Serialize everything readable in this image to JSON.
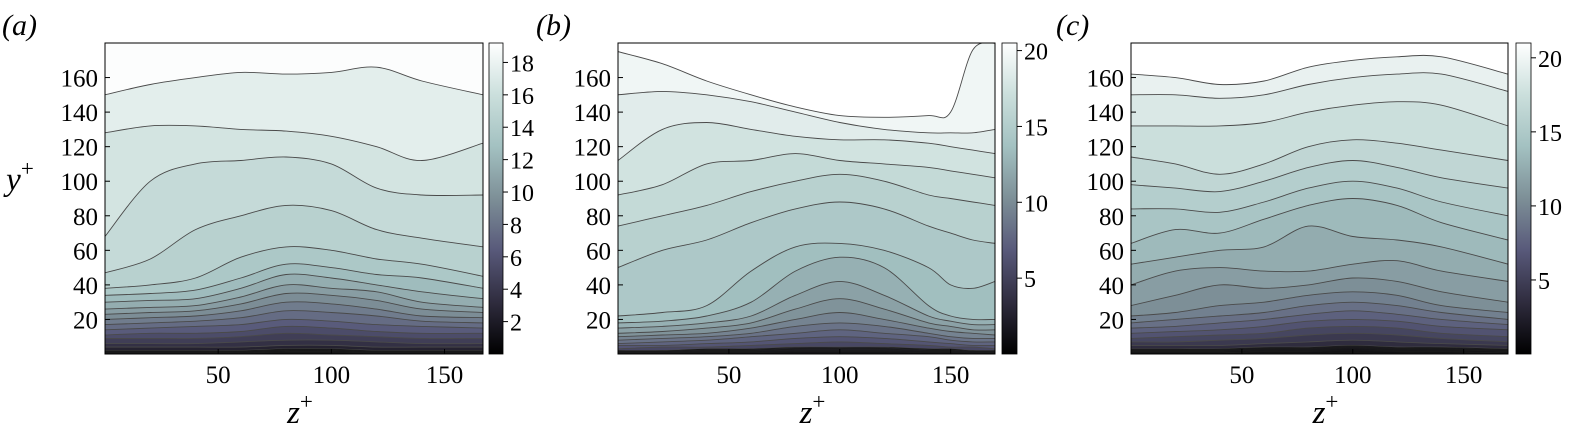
{
  "chart_data": [
    {
      "type": "contour",
      "panel_label": "(a)",
      "xlabel": "z+",
      "ylabel": "y+",
      "xlim": [
        0,
        167
      ],
      "ylim": [
        0,
        180
      ],
      "xticks": [
        50,
        100,
        150
      ],
      "yticks": [
        20,
        40,
        60,
        80,
        100,
        120,
        140,
        160
      ],
      "colorbar": {
        "min": 0,
        "max": 19.2,
        "ticks": [
          2,
          4,
          6,
          8,
          10,
          12,
          14,
          16,
          18
        ]
      },
      "colormap": [
        "#000000",
        "#2f2c3e",
        "#58597a",
        "#7d8f97",
        "#a3c1c1",
        "#cbdfdc",
        "#ffffff"
      ],
      "field": {
        "z": [
          0,
          20,
          40,
          60,
          80,
          100,
          120,
          140,
          167
        ],
        "levels": [
          {
            "value": 17.5,
            "y": [
              150,
              156,
              160,
              163,
              162,
              163,
              166,
              158,
              150
            ]
          },
          {
            "value": 16.5,
            "y": [
              128,
              132,
              132,
              130,
              129,
              126,
              120,
              112,
              122
            ]
          },
          {
            "value": 15.5,
            "y": [
              68,
              100,
              110,
              112,
              114,
              110,
              96,
              92,
              92
            ]
          },
          {
            "value": 14.5,
            "y": [
              47,
              55,
              72,
              80,
              86,
              83,
              72,
              67,
              62
            ]
          },
          {
            "value": 13.5,
            "y": [
              38,
              40,
              44,
              56,
              62,
              60,
              55,
              52,
              45
            ]
          },
          {
            "value": 12.5,
            "y": [
              34,
              35,
              37,
              44,
              52,
              50,
              46,
              44,
              38
            ]
          },
          {
            "value": 11.5,
            "y": [
              30,
              31,
              32,
              38,
              46,
              44,
              40,
              36,
              32
            ]
          },
          {
            "value": 10.5,
            "y": [
              26,
              27,
              28,
              33,
              40,
              38,
              36,
              30,
              27
            ]
          },
          {
            "value": 9.5,
            "y": [
              23,
              24,
              25,
              29,
              35,
              34,
              31,
              26,
              24
            ]
          },
          {
            "value": 8.5,
            "y": [
              20,
              21,
              22,
              25,
              30,
              29,
              26,
              22,
              21
            ]
          },
          {
            "value": 7.5,
            "y": [
              17,
              18,
              19,
              21,
              25,
              24,
              22,
              19,
              18
            ]
          },
          {
            "value": 6.5,
            "y": [
              14,
              15,
              16,
              17,
              20,
              19,
              17,
              16,
              15
            ]
          },
          {
            "value": 5.5,
            "y": [
              11,
              12,
              12,
              13,
              16,
              15,
              13,
              12,
              12
            ]
          },
          {
            "value": 4.5,
            "y": [
              9,
              9,
              9,
              10,
              12,
              11,
              10,
              9,
              9
            ]
          },
          {
            "value": 3.5,
            "y": [
              6,
              6,
              6,
              7,
              8,
              8,
              7,
              6,
              6
            ]
          },
          {
            "value": 2.5,
            "y": [
              4,
              4,
              4,
              4,
              5,
              5,
              4,
              4,
              4
            ]
          },
          {
            "value": 1.5,
            "y": [
              2,
              2,
              2,
              2,
              3,
              3,
              2,
              2,
              2
            ]
          }
        ]
      }
    },
    {
      "type": "contour",
      "panel_label": "(b)",
      "xlabel": "z+",
      "ylabel": "",
      "xlim": [
        0,
        170
      ],
      "ylim": [
        0,
        180
      ],
      "xticks": [
        50,
        100,
        150
      ],
      "yticks": [
        20,
        40,
        60,
        80,
        100,
        120,
        140,
        160
      ],
      "colorbar": {
        "min": 0,
        "max": 20.5,
        "ticks": [
          5,
          10,
          15,
          20
        ]
      },
      "colormap": [
        "#000000",
        "#2f2c3e",
        "#58597a",
        "#7d8f97",
        "#a3c1c1",
        "#cbdfdc",
        "#ffffff"
      ],
      "field": {
        "z": [
          0,
          20,
          40,
          60,
          80,
          100,
          120,
          140,
          150,
          160,
          170
        ],
        "levels": [
          {
            "value": 19.5,
            "y": [
              175,
              168,
              158,
              150,
              143,
              138,
              137,
              138,
              140,
              176,
              180
            ]
          },
          {
            "value": 18.5,
            "y": [
              150,
              152,
              150,
              146,
              140,
              134,
              130,
              128,
              128,
              128,
              130
            ]
          },
          {
            "value": 17.5,
            "y": [
              112,
              130,
              134,
              130,
              126,
              124,
              124,
              122,
              120,
              118,
              116
            ]
          },
          {
            "value": 16.5,
            "y": [
              92,
              98,
              110,
              112,
              116,
              112,
              110,
              108,
              106,
              104,
              102
            ]
          },
          {
            "value": 15.5,
            "y": [
              74,
              80,
              86,
              94,
              100,
              104,
              100,
              92,
              90,
              88,
              86
            ]
          },
          {
            "value": 14.5,
            "y": [
              50,
              60,
              66,
              76,
              84,
              88,
              84,
              74,
              70,
              66,
              64
            ]
          },
          {
            "value": 13.5,
            "y": [
              22,
              24,
              28,
              48,
              62,
              64,
              60,
              50,
              40,
              38,
              42
            ]
          },
          {
            "value": 12.5,
            "y": [
              18,
              19,
              22,
              30,
              48,
              56,
              50,
              28,
              22,
              20,
              20
            ]
          },
          {
            "value": 11.5,
            "y": [
              15,
              16,
              18,
              22,
              34,
              42,
              34,
              22,
              19,
              17,
              17
            ]
          },
          {
            "value": 10.5,
            "y": [
              12,
              13,
              15,
              18,
              26,
              32,
              26,
              18,
              16,
              14,
              14
            ]
          },
          {
            "value": 9.5,
            "y": [
              10,
              11,
              12,
              15,
              20,
              24,
              20,
              15,
              13,
              12,
              11
            ]
          },
          {
            "value": 8.5,
            "y": [
              8,
              9,
              10,
              12,
              16,
              18,
              16,
              12,
              10,
              9,
              9
            ]
          },
          {
            "value": 7.5,
            "y": [
              6,
              7,
              8,
              10,
              12,
              14,
              12,
              10,
              8,
              7,
              7
            ]
          },
          {
            "value": 6.5,
            "y": [
              5,
              5,
              6,
              7,
              9,
              10,
              9,
              7,
              6,
              5,
              5
            ]
          },
          {
            "value": 5.5,
            "y": [
              3,
              4,
              4,
              5,
              6,
              7,
              6,
              5,
              4,
              4,
              3
            ]
          },
          {
            "value": 4.5,
            "y": [
              2,
              2,
              3,
              3,
              4,
              4,
              4,
              3,
              3,
              2,
              2
            ]
          }
        ]
      }
    },
    {
      "type": "contour",
      "panel_label": "(c)",
      "xlabel": "z+",
      "ylabel": "",
      "xlim": [
        0,
        170
      ],
      "ylim": [
        0,
        180
      ],
      "xticks": [
        50,
        100,
        150
      ],
      "yticks": [
        20,
        40,
        60,
        80,
        100,
        120,
        140,
        160
      ],
      "colorbar": {
        "min": 0,
        "max": 21,
        "ticks": [
          5,
          10,
          15,
          20
        ]
      },
      "colormap": [
        "#000000",
        "#2f2c3e",
        "#58597a",
        "#7d8f97",
        "#a3c1c1",
        "#cbdfdc",
        "#ffffff"
      ],
      "field": {
        "z": [
          0,
          20,
          40,
          60,
          80,
          100,
          120,
          140,
          170
        ],
        "levels": [
          {
            "value": 19.5,
            "y": [
              162,
              160,
              156,
              158,
              166,
              170,
              172,
              172,
              162
            ]
          },
          {
            "value": 18.5,
            "y": [
              150,
              150,
              148,
              150,
              156,
              160,
              162,
              162,
              152
            ]
          },
          {
            "value": 17.5,
            "y": [
              132,
              132,
              132,
              134,
              140,
              144,
              146,
              144,
              132
            ]
          },
          {
            "value": 16.5,
            "y": [
              114,
              110,
              104,
              110,
              120,
              124,
              122,
              118,
              112
            ]
          },
          {
            "value": 15.5,
            "y": [
              98,
              96,
              94,
              100,
              108,
              112,
              108,
              102,
              96
            ]
          },
          {
            "value": 14.5,
            "y": [
              84,
              84,
              82,
              88,
              96,
              100,
              96,
              88,
              80
            ]
          },
          {
            "value": 13.5,
            "y": [
              64,
              72,
              70,
              78,
              86,
              90,
              86,
              76,
              66
            ]
          },
          {
            "value": 12.5,
            "y": [
              52,
              56,
              60,
              62,
              74,
              68,
              66,
              62,
              52
            ]
          },
          {
            "value": 11.5,
            "y": [
              40,
              48,
              50,
              48,
              48,
              52,
              54,
              48,
              42
            ]
          },
          {
            "value": 10.5,
            "y": [
              28,
              34,
              40,
              38,
              40,
              44,
              42,
              36,
              30
            ]
          },
          {
            "value": 9.5,
            "y": [
              22,
              24,
              28,
              30,
              34,
              36,
              34,
              28,
              24
            ]
          },
          {
            "value": 8.5,
            "y": [
              18,
              20,
              22,
              24,
              28,
              30,
              28,
              24,
              20
            ]
          },
          {
            "value": 7.5,
            "y": [
              15,
              16,
              18,
              20,
              23,
              25,
              23,
              20,
              17
            ]
          },
          {
            "value": 6.5,
            "y": [
              12,
              13,
              14,
              16,
              19,
              20,
              19,
              16,
              14
            ]
          },
          {
            "value": 5.5,
            "y": [
              9,
              10,
              11,
              12,
              15,
              16,
              15,
              12,
              10
            ]
          },
          {
            "value": 4.5,
            "y": [
              7,
              7,
              8,
              9,
              11,
              12,
              11,
              9,
              7
            ]
          },
          {
            "value": 3.5,
            "y": [
              5,
              5,
              5,
              6,
              7,
              8,
              7,
              6,
              5
            ]
          },
          {
            "value": 2.5,
            "y": [
              3,
              3,
              3,
              4,
              4,
              5,
              4,
              4,
              3
            ]
          }
        ]
      }
    }
  ]
}
